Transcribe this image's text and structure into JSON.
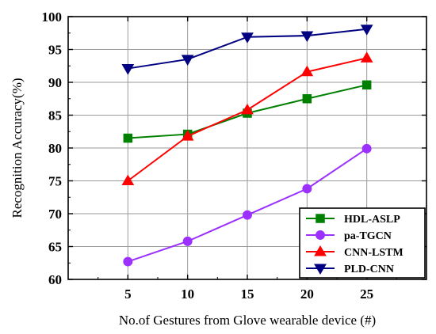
{
  "chart_data": {
    "type": "line",
    "title": "",
    "xlabel": "No.of Gestures from Glove wearable device (#)",
    "ylabel": "Recognition Accuracy(%)",
    "x": [
      5,
      10,
      15,
      20,
      25
    ],
    "xlim": [
      0,
      30
    ],
    "ylim": [
      60,
      100
    ],
    "yticks": [
      60,
      65,
      70,
      75,
      80,
      85,
      90,
      95,
      100
    ],
    "xticks": [
      5,
      10,
      15,
      20,
      25
    ],
    "grid": true,
    "legend_position": "bottom-right",
    "series": [
      {
        "name": "HDL-ASLP",
        "color": "#008000",
        "marker": "square",
        "values": [
          81.5,
          82.1,
          85.3,
          87.5,
          89.6
        ]
      },
      {
        "name": "pa-TGCN",
        "color": "#9b30ff",
        "marker": "circle",
        "values": [
          62.7,
          65.8,
          69.8,
          73.8,
          79.9
        ]
      },
      {
        "name": "CNN-LSTM",
        "color": "#ff0000",
        "marker": "triangle-up",
        "values": [
          75.0,
          81.8,
          85.8,
          91.6,
          93.7
        ]
      },
      {
        "name": "PLD-CNN",
        "color": "#000080",
        "marker": "triangle-down",
        "values": [
          92.1,
          93.5,
          96.9,
          97.1,
          98.1
        ]
      }
    ]
  }
}
